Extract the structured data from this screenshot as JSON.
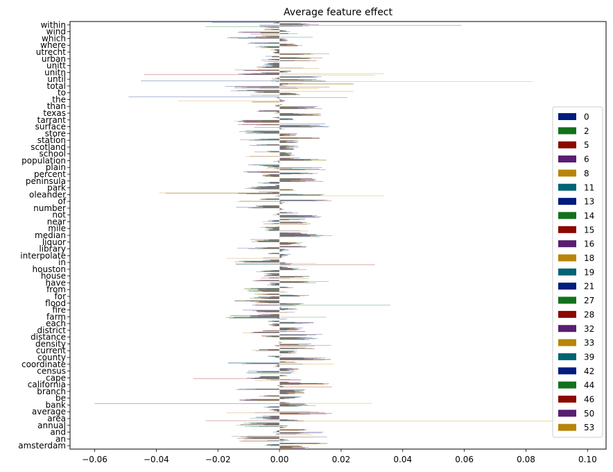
{
  "chart_data": {
    "type": "bar",
    "orientation": "horizontal",
    "title": "Average feature effect",
    "xlabel": "",
    "ylabel": "",
    "xlim": [
      -0.068,
      0.106
    ],
    "xticks": [
      -0.06,
      -0.04,
      -0.02,
      0.0,
      0.02,
      0.04,
      0.06,
      0.08,
      0.1
    ],
    "xtick_labels": [
      "−0.06",
      "−0.04",
      "−0.02",
      "0.00",
      "0.02",
      "0.04",
      "0.06",
      "0.08",
      "0.10"
    ],
    "grid": false,
    "legend_position": "right",
    "categories": [
      "within",
      "wind",
      "which",
      "where",
      "utrecht",
      "urban",
      "unitt",
      "unitn",
      "until",
      "total",
      "to",
      "the",
      "than",
      "texas",
      "tarrant",
      "surface",
      "store",
      "station",
      "scotland",
      "school",
      "population",
      "plain",
      "percent",
      "peninsula",
      "park",
      "oleander",
      "of",
      "number",
      "not",
      "near",
      "mile",
      "median",
      "liquor",
      "library",
      "interpolate",
      "in",
      "houston",
      "house",
      "have",
      "from",
      "for",
      "flood",
      "fire",
      "farm",
      "each",
      "district",
      "distance",
      "density",
      "current",
      "county",
      "coordinate",
      "census",
      "cape",
      "california",
      "branch",
      "be",
      "bank",
      "average",
      "area",
      "annual",
      "and",
      "an",
      "amsterdam"
    ],
    "series": [
      {
        "name": "0",
        "color": "#001c7f"
      },
      {
        "name": "2",
        "color": "#12711c"
      },
      {
        "name": "5",
        "color": "#8c0800"
      },
      {
        "name": "6",
        "color": "#591e71"
      },
      {
        "name": "8",
        "color": "#b8850a"
      },
      {
        "name": "11",
        "color": "#006374"
      },
      {
        "name": "13",
        "color": "#001c7f"
      },
      {
        "name": "14",
        "color": "#12711c"
      },
      {
        "name": "15",
        "color": "#8c0800"
      },
      {
        "name": "16",
        "color": "#591e71"
      },
      {
        "name": "18",
        "color": "#b8850a"
      },
      {
        "name": "19",
        "color": "#006374"
      },
      {
        "name": "21",
        "color": "#001c7f"
      },
      {
        "name": "27",
        "color": "#12711c"
      },
      {
        "name": "28",
        "color": "#8c0800"
      },
      {
        "name": "32",
        "color": "#591e71"
      },
      {
        "name": "33",
        "color": "#b8850a"
      },
      {
        "name": "39",
        "color": "#006374"
      },
      {
        "name": "42",
        "color": "#001c7f"
      },
      {
        "name": "44",
        "color": "#12711c"
      },
      {
        "name": "46",
        "color": "#8c0800"
      },
      {
        "name": "50",
        "color": "#591e71"
      },
      {
        "name": "53",
        "color": "#b8850a"
      }
    ],
    "notable_values": {
      "within": {
        "28": 0.059,
        "44": -0.024,
        "0": -0.022
      },
      "unitn": {
        "46": -0.044,
        "33": 0.034,
        "53": 0.031
      },
      "until": {
        "53": 0.082,
        "42": -0.045
      },
      "total": {
        "2": 0.024,
        "8": 0.024
      },
      "to": {
        "8": 0.024
      },
      "the": {
        "0": -0.049,
        "33": -0.033,
        "5": 0.022
      },
      "oleander": {
        "8": -0.039,
        "11": -0.037,
        "33": 0.034
      },
      "in": {
        "46": 0.031,
        "33": 0.012
      },
      "flood": {
        "44": 0.036
      },
      "bank": {
        "13": -0.06,
        "8": 0.03
      },
      "area": {
        "53": 0.1,
        "46": -0.024
      },
      "cape": {
        "28": -0.028
      },
      "california": {
        "46": 0.017
      }
    }
  }
}
